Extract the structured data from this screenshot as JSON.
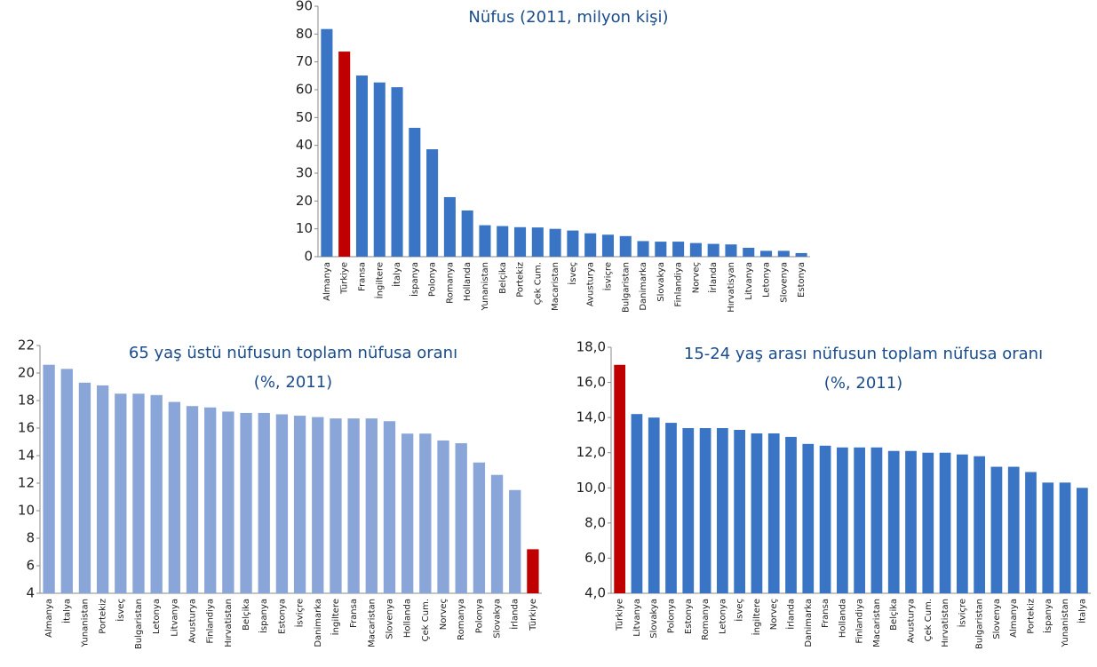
{
  "chart_data": [
    {
      "type": "bar",
      "title": [
        "Nüfus (2011, milyon kişi)"
      ],
      "categories": [
        "Almanya",
        "Türkiye",
        "Fransa",
        "İngiltere",
        "İtalya",
        "İspanya",
        "Polonya",
        "Romanya",
        "Hollanda",
        "Yunanistan",
        "Belçika",
        "Portekiz",
        "Çek Cum.",
        "Macaristan",
        "İsveç",
        "Avusturya",
        "İsviçre",
        "Bulgaristan",
        "Danimarka",
        "Slovakya",
        "Finlandiya",
        "Norveç",
        "İrlanda",
        "Hırvatisyan",
        "Litvanya",
        "Letonya",
        "Slovenya",
        "Estonya"
      ],
      "values": [
        81.8,
        73.7,
        65.1,
        62.6,
        60.9,
        46.3,
        38.6,
        21.4,
        16.6,
        11.3,
        11.0,
        10.6,
        10.5,
        10.0,
        9.4,
        8.4,
        7.9,
        7.4,
        5.6,
        5.4,
        5.4,
        4.9,
        4.6,
        4.4,
        3.2,
        2.1,
        2.1,
        1.3
      ],
      "colors": [
        "#3a74c4",
        "#c00000",
        "#3a74c4",
        "#3a74c4",
        "#3a74c4",
        "#3a74c4",
        "#3a74c4",
        "#3a74c4",
        "#3a74c4",
        "#3a74c4",
        "#3a74c4",
        "#3a74c4",
        "#3a74c4",
        "#3a74c4",
        "#3a74c4",
        "#3a74c4",
        "#3a74c4",
        "#3a74c4",
        "#3a74c4",
        "#3a74c4",
        "#3a74c4",
        "#3a74c4",
        "#3a74c4",
        "#3a74c4",
        "#3a74c4",
        "#3a74c4",
        "#3a74c4",
        "#3a74c4"
      ],
      "ylim": [
        0,
        90
      ],
      "yticks": [
        0,
        10,
        20,
        30,
        40,
        50,
        60,
        70,
        80,
        90
      ]
    },
    {
      "type": "bar",
      "title": [
        "65 yaş üstü nüfusun toplam nüfusa oranı",
        "(%, 2011)"
      ],
      "categories": [
        "Almanya",
        "İtalya",
        "Yunanistan",
        "Portekiz",
        "İsveç",
        "Bulgaristan",
        "Letonya",
        "Litvanya",
        "Avusturya",
        "Finlandiya",
        "Hırvatistan",
        "Belçika",
        "İspanya",
        "Estonya",
        "İsviçre",
        "Danimarka",
        "İngiltere",
        "Fransa",
        "Macaristan",
        "Slovenya",
        "Hollanda",
        "Çek Cum.",
        "Norveç",
        "Romanya",
        "Polonya",
        "Slovakya",
        "İrlanda",
        "Türkiye"
      ],
      "values": [
        20.6,
        20.3,
        19.3,
        19.1,
        18.5,
        18.5,
        18.4,
        17.9,
        17.6,
        17.5,
        17.2,
        17.1,
        17.1,
        17.0,
        16.9,
        16.8,
        16.7,
        16.7,
        16.7,
        16.5,
        15.6,
        15.6,
        15.1,
        14.9,
        13.5,
        12.6,
        11.5,
        7.2
      ],
      "colors": [
        "#8aa6d8",
        "#8aa6d8",
        "#8aa6d8",
        "#8aa6d8",
        "#8aa6d8",
        "#8aa6d8",
        "#8aa6d8",
        "#8aa6d8",
        "#8aa6d8",
        "#8aa6d8",
        "#8aa6d8",
        "#8aa6d8",
        "#8aa6d8",
        "#8aa6d8",
        "#8aa6d8",
        "#8aa6d8",
        "#8aa6d8",
        "#8aa6d8",
        "#8aa6d8",
        "#8aa6d8",
        "#8aa6d8",
        "#8aa6d8",
        "#8aa6d8",
        "#8aa6d8",
        "#8aa6d8",
        "#8aa6d8",
        "#8aa6d8",
        "#c00000"
      ],
      "ylim": [
        4,
        22
      ],
      "yticks": [
        4,
        6,
        8,
        10,
        12,
        14,
        16,
        18,
        20,
        22
      ]
    },
    {
      "type": "bar",
      "title": [
        "15-24 yaş arası nüfusun toplam nüfusa oranı",
        "(%, 2011)"
      ],
      "categories": [
        "Türkiye",
        "Litvanya",
        "Slovakya",
        "Polonya",
        "Estonya",
        "Romanya",
        "Letonya",
        "İsveç",
        "İngiltere",
        "Norveç",
        "İrlanda",
        "Danimarka",
        "Fransa",
        "Hollanda",
        "Finlandiya",
        "Macaristan",
        "Belçika",
        "Avusturya",
        "Çek Cum.",
        "Hırvatistan",
        "İsviçre",
        "Bulgaristan",
        "Slovenya",
        "Almanya",
        "Portekiz",
        "İspanya",
        "Yunanistan",
        "İtalya"
      ],
      "values": [
        17.0,
        14.2,
        14.0,
        13.7,
        13.4,
        13.4,
        13.4,
        13.3,
        13.1,
        13.1,
        12.9,
        12.5,
        12.4,
        12.3,
        12.3,
        12.3,
        12.1,
        12.1,
        12.0,
        12.0,
        11.9,
        11.8,
        11.2,
        11.2,
        10.9,
        10.3,
        10.3,
        10.0
      ],
      "colors": [
        "#c00000",
        "#3a74c4",
        "#3a74c4",
        "#3a74c4",
        "#3a74c4",
        "#3a74c4",
        "#3a74c4",
        "#3a74c4",
        "#3a74c4",
        "#3a74c4",
        "#3a74c4",
        "#3a74c4",
        "#3a74c4",
        "#3a74c4",
        "#3a74c4",
        "#3a74c4",
        "#3a74c4",
        "#3a74c4",
        "#3a74c4",
        "#3a74c4",
        "#3a74c4",
        "#3a74c4",
        "#3a74c4",
        "#3a74c4",
        "#3a74c4",
        "#3a74c4",
        "#3a74c4",
        "#3a74c4"
      ],
      "ylim": [
        4,
        18
      ],
      "yticks": [
        {
          "value": 4,
          "label": "4,0"
        },
        {
          "value": 6,
          "label": "6,0"
        },
        {
          "value": 8,
          "label": "8,0"
        },
        {
          "value": 10,
          "label": "10,0"
        },
        {
          "value": 12,
          "label": "12,0"
        },
        {
          "value": 14,
          "label": "14,0"
        },
        {
          "value": 16,
          "label": "16,0"
        },
        {
          "value": 18,
          "label": "18,0"
        }
      ]
    }
  ]
}
